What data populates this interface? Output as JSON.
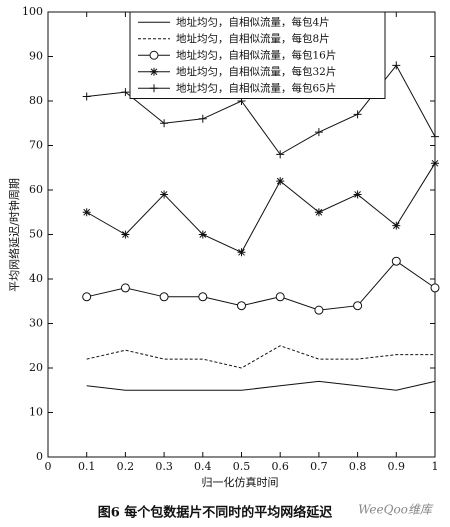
{
  "chart_data": {
    "type": "line",
    "title": "图6  每个包数据片不同时的平均网络延迟",
    "x_label": "归一化仿真时间",
    "y_label": "平均网络延迟/时钟周期",
    "watermark": "WeeQoo维库",
    "x": [
      0.1,
      0.2,
      0.3,
      0.4,
      0.5,
      0.6,
      0.7,
      0.8,
      0.9,
      1
    ],
    "xlim": [
      0,
      1
    ],
    "xticks": [
      0,
      0.1,
      0.2,
      0.3,
      0.4,
      0.5,
      0.6,
      0.7,
      0.8,
      0.9,
      1
    ],
    "ylim": [
      0,
      100
    ],
    "yticks": [
      0,
      10,
      20,
      30,
      40,
      50,
      60,
      70,
      80,
      90,
      100
    ],
    "grid": false,
    "legend": "upper center",
    "series": [
      {
        "name": "地址均匀，自相似流量，每包4片",
        "color": "#111111",
        "dash": "solid",
        "marker": "none",
        "values": [
          16,
          15,
          15,
          15,
          15,
          16,
          17,
          16,
          15,
          17
        ]
      },
      {
        "name": "地址均匀，自相似流量，每包8片",
        "color": "#111111",
        "dash": "dashed",
        "marker": "none",
        "values": [
          22,
          24,
          22,
          22,
          20,
          25,
          22,
          22,
          23,
          23
        ]
      },
      {
        "name": "地址均匀，自相似流量，每包16片",
        "color": "#111111",
        "dash": "solid",
        "marker": "circle",
        "values": [
          36,
          38,
          36,
          36,
          34,
          36,
          33,
          34,
          44,
          38
        ]
      },
      {
        "name": "地址均匀，自相似流量，每包32片",
        "color": "#111111",
        "dash": "solid",
        "marker": "star",
        "values": [
          55,
          50,
          59,
          50,
          46,
          62,
          55,
          59,
          52,
          66
        ]
      },
      {
        "name": "地址均匀，自相似流量，每包65片",
        "color": "#111111",
        "dash": "solid",
        "marker": "plus",
        "values": [
          81,
          82,
          75,
          76,
          80,
          68,
          73,
          77,
          88,
          72
        ]
      }
    ]
  }
}
